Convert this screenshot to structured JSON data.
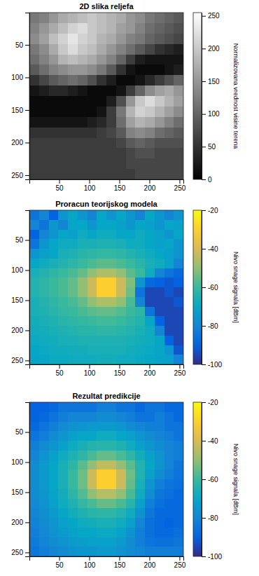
{
  "chart_data": [
    {
      "type": "heatmap",
      "title": "2D slika reljefa",
      "color": "gray",
      "xlim": [
        0.5,
        256.5
      ],
      "ylim": [
        0.5,
        256.5
      ],
      "xticks": [
        50,
        100,
        150,
        200,
        250
      ],
      "yticks": [
        50,
        100,
        150,
        200,
        250
      ],
      "colorbar_range": [
        0,
        255
      ],
      "colorbar_ticks": [
        0,
        50,
        100,
        150,
        200,
        250
      ],
      "colorbar_label": "Normalizovana vrednost visine terena",
      "cells": [
        [
          120,
          130,
          150,
          170,
          180,
          190,
          200,
          190,
          180,
          170,
          150,
          140,
          120,
          110,
          100,
          90
        ],
        [
          130,
          150,
          170,
          190,
          210,
          220,
          200,
          190,
          180,
          160,
          150,
          130,
          110,
          100,
          90,
          80
        ],
        [
          140,
          160,
          190,
          210,
          230,
          210,
          200,
          180,
          170,
          150,
          130,
          120,
          100,
          90,
          80,
          70
        ],
        [
          120,
          140,
          170,
          200,
          220,
          200,
          190,
          170,
          150,
          130,
          110,
          90,
          70,
          50,
          40,
          30
        ],
        [
          110,
          130,
          150,
          180,
          190,
          180,
          170,
          150,
          130,
          100,
          60,
          30,
          20,
          20,
          20,
          20
        ],
        [
          90,
          110,
          130,
          140,
          150,
          150,
          140,
          120,
          90,
          50,
          20,
          10,
          10,
          10,
          20,
          30
        ],
        [
          50,
          70,
          90,
          100,
          110,
          100,
          80,
          50,
          30,
          10,
          10,
          20,
          40,
          60,
          80,
          100
        ],
        [
          20,
          30,
          40,
          40,
          30,
          20,
          10,
          10,
          10,
          20,
          60,
          100,
          140,
          160,
          170,
          150
        ],
        [
          10,
          10,
          10,
          10,
          10,
          10,
          10,
          10,
          30,
          80,
          150,
          200,
          220,
          200,
          180,
          160
        ],
        [
          10,
          10,
          10,
          10,
          10,
          10,
          10,
          20,
          60,
          120,
          180,
          210,
          200,
          180,
          160,
          140
        ],
        [
          20,
          20,
          20,
          20,
          20,
          20,
          30,
          40,
          60,
          110,
          160,
          180,
          170,
          150,
          130,
          110
        ],
        [
          50,
          50,
          50,
          50,
          50,
          50,
          50,
          60,
          70,
          90,
          130,
          140,
          130,
          110,
          100,
          90
        ],
        [
          60,
          60,
          60,
          60,
          60,
          60,
          60,
          60,
          60,
          70,
          90,
          100,
          90,
          80,
          80,
          80
        ],
        [
          60,
          60,
          60,
          60,
          60,
          60,
          60,
          60,
          60,
          60,
          70,
          80,
          80,
          70,
          70,
          70
        ],
        [
          60,
          60,
          60,
          60,
          60,
          60,
          60,
          60,
          60,
          60,
          70,
          70,
          70,
          70,
          70,
          70
        ],
        [
          60,
          60,
          60,
          60,
          60,
          60,
          60,
          60,
          60,
          60,
          60,
          70,
          70,
          70,
          70,
          70
        ]
      ]
    },
    {
      "type": "heatmap",
      "title": "Proracun teorijskog modela",
      "color": "parula",
      "xlim": [
        0.5,
        256.5
      ],
      "ylim": [
        0.5,
        256.5
      ],
      "xticks": [
        50,
        100,
        150,
        200,
        250
      ],
      "yticks": [
        50,
        100,
        150,
        200,
        250
      ],
      "colorbar_range": [
        -100,
        -20
      ],
      "colorbar_ticks": [
        -100,
        -80,
        -60,
        -40,
        -20
      ],
      "colorbar_label": "Nivo snage signala [dBm]",
      "cells": [
        [
          -85,
          -80,
          -90,
          -75,
          -70,
          -75,
          -80,
          -70,
          -75,
          -70,
          -75,
          -80,
          -70,
          -75,
          -80,
          -75
        ],
        [
          -80,
          -85,
          -75,
          -80,
          -70,
          -70,
          -75,
          -70,
          -70,
          -72,
          -75,
          -70,
          -72,
          -75,
          -70,
          -72
        ],
        [
          -90,
          -80,
          -75,
          -70,
          -72,
          -68,
          -70,
          -68,
          -68,
          -70,
          -70,
          -68,
          -70,
          -72,
          -75,
          -70
        ],
        [
          -85,
          -75,
          -70,
          -68,
          -68,
          -66,
          -66,
          -65,
          -65,
          -66,
          -68,
          -68,
          -70,
          -72,
          -70,
          -75
        ],
        [
          -75,
          -72,
          -70,
          -66,
          -65,
          -63,
          -62,
          -61,
          -61,
          -62,
          -64,
          -66,
          -68,
          -70,
          -72,
          -75
        ],
        [
          -70,
          -68,
          -66,
          -64,
          -62,
          -60,
          -58,
          -56,
          -56,
          -58,
          -60,
          -63,
          -66,
          -68,
          -72,
          -80
        ],
        [
          -66,
          -64,
          -62,
          -60,
          -58,
          -55,
          -50,
          -46,
          -46,
          -50,
          -56,
          -60,
          -68,
          -80,
          -85,
          -88
        ],
        [
          -64,
          -62,
          -60,
          -58,
          -55,
          -50,
          -42,
          -30,
          -30,
          -42,
          -52,
          -75,
          -88,
          -90,
          -92,
          -90
        ],
        [
          -64,
          -62,
          -60,
          -58,
          -55,
          -50,
          -42,
          -30,
          -30,
          -42,
          -54,
          -85,
          -95,
          -95,
          -92,
          -95
        ],
        [
          -66,
          -64,
          -62,
          -60,
          -58,
          -55,
          -50,
          -46,
          -46,
          -50,
          -58,
          -80,
          -95,
          -95,
          -95,
          -92
        ],
        [
          -66,
          -65,
          -63,
          -61,
          -60,
          -58,
          -56,
          -55,
          -55,
          -57,
          -60,
          -62,
          -85,
          -95,
          -95,
          -95
        ],
        [
          -67,
          -66,
          -65,
          -63,
          -62,
          -61,
          -60,
          -59,
          -59,
          -60,
          -62,
          -64,
          -70,
          -90,
          -95,
          -95
        ],
        [
          -68,
          -67,
          -66,
          -65,
          -64,
          -63,
          -63,
          -62,
          -62,
          -63,
          -64,
          -66,
          -68,
          -80,
          -95,
          -95
        ],
        [
          -69,
          -68,
          -67,
          -66,
          -66,
          -65,
          -65,
          -65,
          -65,
          -65,
          -66,
          -67,
          -68,
          -70,
          -90,
          -95
        ],
        [
          -70,
          -69,
          -68,
          -68,
          -67,
          -67,
          -66,
          -66,
          -66,
          -66,
          -67,
          -68,
          -69,
          -70,
          -75,
          -92
        ],
        [
          -71,
          -70,
          -69,
          -69,
          -68,
          -68,
          -68,
          -67,
          -67,
          -68,
          -68,
          -69,
          -70,
          -71,
          -72,
          -80
        ]
      ]
    },
    {
      "type": "heatmap",
      "title": "Rezultat predikcije",
      "color": "parula",
      "xlim": [
        0.5,
        256.5
      ],
      "ylim": [
        0.5,
        256.5
      ],
      "xticks": [
        50,
        100,
        150,
        200,
        250
      ],
      "yticks": [
        50,
        100,
        150,
        200,
        250
      ],
      "colorbar_range": [
        -100,
        -20
      ],
      "colorbar_ticks": [
        -100,
        -80,
        -60,
        -40,
        -20
      ],
      "colorbar_label": "Nivo snage signala [dBm]",
      "cells": [
        [
          -90,
          -90,
          -88,
          -85,
          -85,
          -85,
          -85,
          -82,
          -82,
          -85,
          -85,
          -88,
          -85,
          -85,
          -88,
          -88
        ],
        [
          -90,
          -88,
          -85,
          -82,
          -80,
          -80,
          -80,
          -78,
          -78,
          -80,
          -82,
          -85,
          -85,
          -82,
          -85,
          -88
        ],
        [
          -88,
          -85,
          -82,
          -78,
          -76,
          -75,
          -74,
          -74,
          -74,
          -75,
          -78,
          -80,
          -82,
          -82,
          -85,
          -85
        ],
        [
          -85,
          -82,
          -78,
          -75,
          -72,
          -70,
          -70,
          -68,
          -68,
          -70,
          -72,
          -75,
          -78,
          -80,
          -82,
          -85
        ],
        [
          -82,
          -78,
          -75,
          -72,
          -68,
          -66,
          -64,
          -63,
          -63,
          -65,
          -68,
          -72,
          -75,
          -78,
          -80,
          -82
        ],
        [
          -80,
          -76,
          -72,
          -68,
          -65,
          -62,
          -58,
          -55,
          -55,
          -58,
          -62,
          -67,
          -72,
          -76,
          -80,
          -82
        ],
        [
          -78,
          -74,
          -70,
          -66,
          -62,
          -56,
          -50,
          -44,
          -44,
          -50,
          -56,
          -64,
          -70,
          -76,
          -80,
          -84
        ],
        [
          -78,
          -74,
          -70,
          -66,
          -60,
          -54,
          -42,
          -30,
          -30,
          -42,
          -54,
          -64,
          -72,
          -78,
          -82,
          -85
        ],
        [
          -78,
          -74,
          -70,
          -66,
          -60,
          -54,
          -42,
          -30,
          -30,
          -42,
          -55,
          -66,
          -75,
          -82,
          -85,
          -86
        ],
        [
          -78,
          -75,
          -71,
          -67,
          -62,
          -57,
          -50,
          -45,
          -45,
          -50,
          -58,
          -68,
          -78,
          -84,
          -86,
          -88
        ],
        [
          -79,
          -76,
          -72,
          -68,
          -65,
          -61,
          -58,
          -55,
          -55,
          -58,
          -63,
          -72,
          -82,
          -86,
          -88,
          -88
        ],
        [
          -80,
          -77,
          -74,
          -70,
          -67,
          -65,
          -63,
          -62,
          -62,
          -64,
          -68,
          -76,
          -84,
          -88,
          -88,
          -88
        ],
        [
          -81,
          -78,
          -75,
          -72,
          -70,
          -68,
          -67,
          -66,
          -66,
          -68,
          -72,
          -80,
          -86,
          -88,
          -90,
          -88
        ],
        [
          -82,
          -79,
          -76,
          -74,
          -72,
          -70,
          -70,
          -69,
          -69,
          -71,
          -76,
          -82,
          -86,
          -88,
          -88,
          -86
        ],
        [
          -83,
          -80,
          -78,
          -76,
          -74,
          -73,
          -72,
          -72,
          -72,
          -74,
          -78,
          -82,
          -85,
          -86,
          -86,
          -84
        ],
        [
          -84,
          -82,
          -80,
          -78,
          -76,
          -75,
          -75,
          -74,
          -74,
          -76,
          -78,
          -80,
          -82,
          -82,
          -82,
          -82
        ]
      ]
    }
  ]
}
